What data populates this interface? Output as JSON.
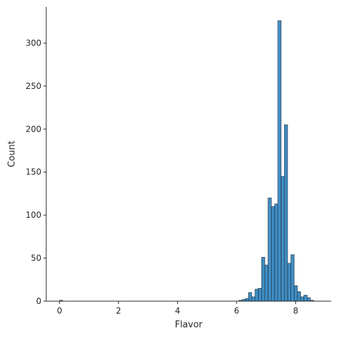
{
  "chart_data": {
    "type": "bar",
    "title": "",
    "xlabel": "Flavor",
    "ylabel": "Count",
    "xlim": [
      -0.45,
      9.2
    ],
    "ylim": [
      0,
      342
    ],
    "xticks": [
      0,
      2,
      4,
      6,
      8
    ],
    "yticks": [
      0,
      50,
      100,
      150,
      200,
      250,
      300
    ],
    "grid": false,
    "bar_color": "#3f8dc4",
    "bin_width": 0.1104,
    "bins": [
      {
        "x0": 0.0,
        "count": 1
      },
      {
        "x0": 6.071,
        "count": 1
      },
      {
        "x0": 6.182,
        "count": 2
      },
      {
        "x0": 6.292,
        "count": 3
      },
      {
        "x0": 6.402,
        "count": 10
      },
      {
        "x0": 6.513,
        "count": 5
      },
      {
        "x0": 6.623,
        "count": 14
      },
      {
        "x0": 6.734,
        "count": 15
      },
      {
        "x0": 6.844,
        "count": 51
      },
      {
        "x0": 6.955,
        "count": 42
      },
      {
        "x0": 7.065,
        "count": 120
      },
      {
        "x0": 7.175,
        "count": 110
      },
      {
        "x0": 7.286,
        "count": 113
      },
      {
        "x0": 7.396,
        "count": 326
      },
      {
        "x0": 7.507,
        "count": 145
      },
      {
        "x0": 7.617,
        "count": 205
      },
      {
        "x0": 7.728,
        "count": 44
      },
      {
        "x0": 7.838,
        "count": 54
      },
      {
        "x0": 7.949,
        "count": 18
      },
      {
        "x0": 8.059,
        "count": 11
      },
      {
        "x0": 8.169,
        "count": 5
      },
      {
        "x0": 8.28,
        "count": 7
      },
      {
        "x0": 8.39,
        "count": 4
      },
      {
        "x0": 8.501,
        "count": 1
      }
    ]
  }
}
